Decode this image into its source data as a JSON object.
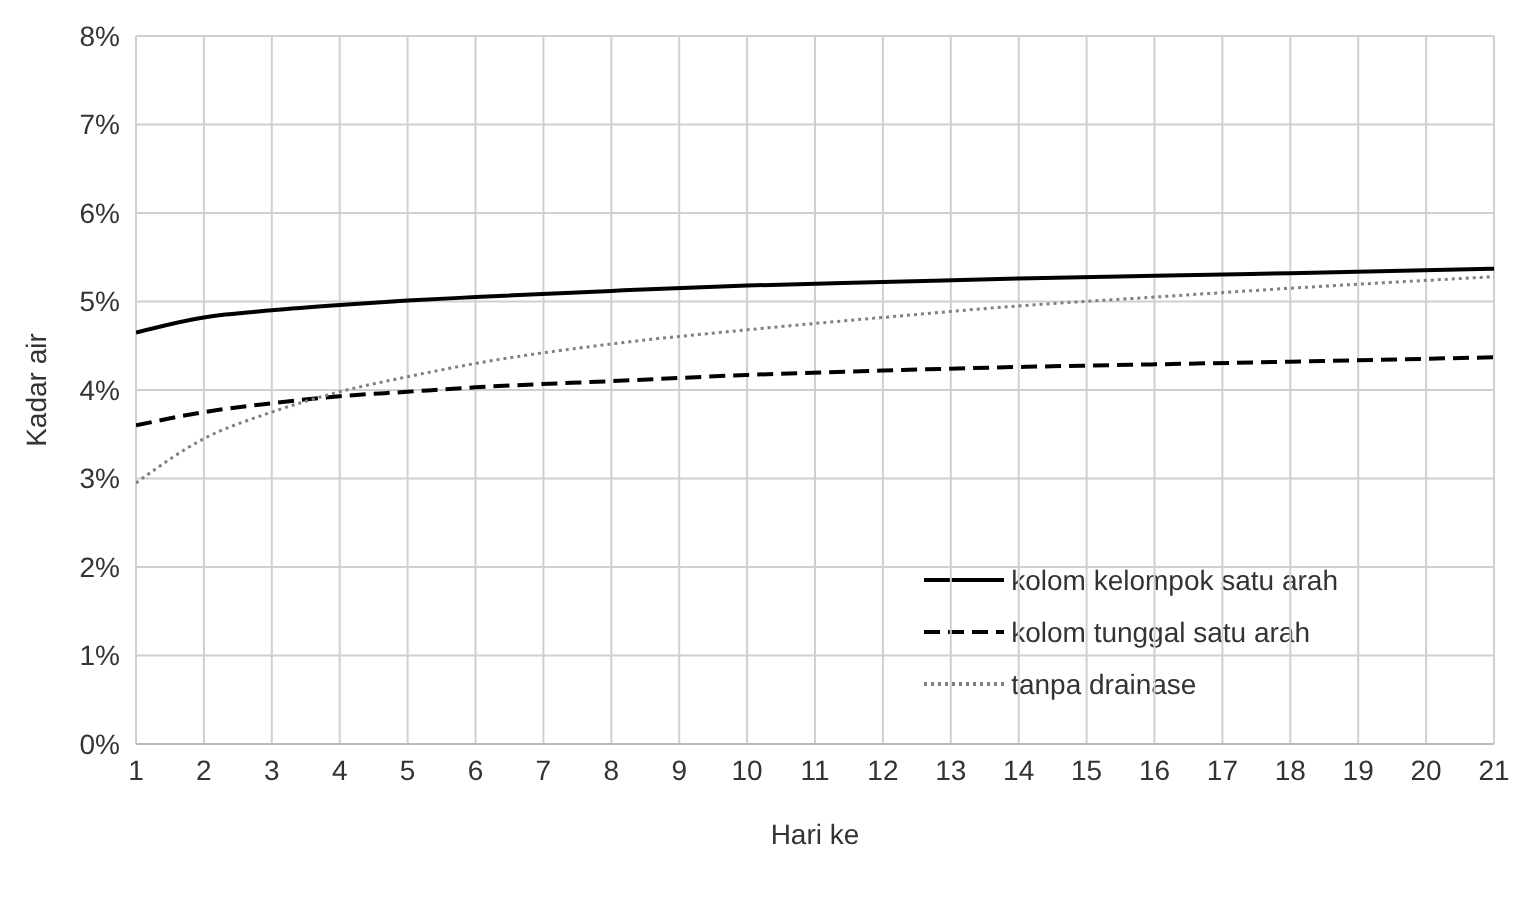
{
  "chart_data": {
    "type": "line",
    "xlabel": "Hari ke",
    "ylabel": "Kadar air",
    "x": [
      1,
      2,
      3,
      4,
      5,
      6,
      8,
      10,
      12,
      14,
      16,
      18,
      21
    ],
    "xlim": [
      1,
      21
    ],
    "xticks": [
      1,
      2,
      3,
      4,
      5,
      6,
      7,
      8,
      9,
      10,
      11,
      12,
      13,
      14,
      15,
      16,
      17,
      18,
      19,
      20,
      21
    ],
    "ylim": [
      0,
      8
    ],
    "yticks": [
      {
        "value": 0,
        "label": "0%"
      },
      {
        "value": 1,
        "label": "1%"
      },
      {
        "value": 2,
        "label": "2%"
      },
      {
        "value": 3,
        "label": "3%"
      },
      {
        "value": 4,
        "label": "4%"
      },
      {
        "value": 5,
        "label": "5%"
      },
      {
        "value": 6,
        "label": "6%"
      },
      {
        "value": 7,
        "label": "7%"
      },
      {
        "value": 8,
        "label": "8%"
      }
    ],
    "grid": true,
    "legend": "bottom right",
    "marker": "none",
    "series": [
      {
        "name": "kolom kelompok satu arah",
        "color": "#000000",
        "line_style": "solid",
        "values": [
          4.65,
          4.82,
          4.9,
          4.96,
          5.01,
          5.05,
          5.12,
          5.18,
          5.22,
          5.26,
          5.29,
          5.32,
          5.37
        ]
      },
      {
        "name": "kolom tunggal satu arah",
        "color": "#000000",
        "line_style": "dashed",
        "values": [
          3.6,
          3.75,
          3.85,
          3.93,
          3.98,
          4.03,
          4.1,
          4.17,
          4.22,
          4.26,
          4.29,
          4.32,
          4.37
        ]
      },
      {
        "name": "tanpa drainase",
        "color": "#808080",
        "line_style": "dotted",
        "values": [
          2.95,
          3.45,
          3.75,
          3.98,
          4.15,
          4.3,
          4.52,
          4.68,
          4.82,
          4.95,
          5.05,
          5.15,
          5.28
        ]
      }
    ]
  }
}
